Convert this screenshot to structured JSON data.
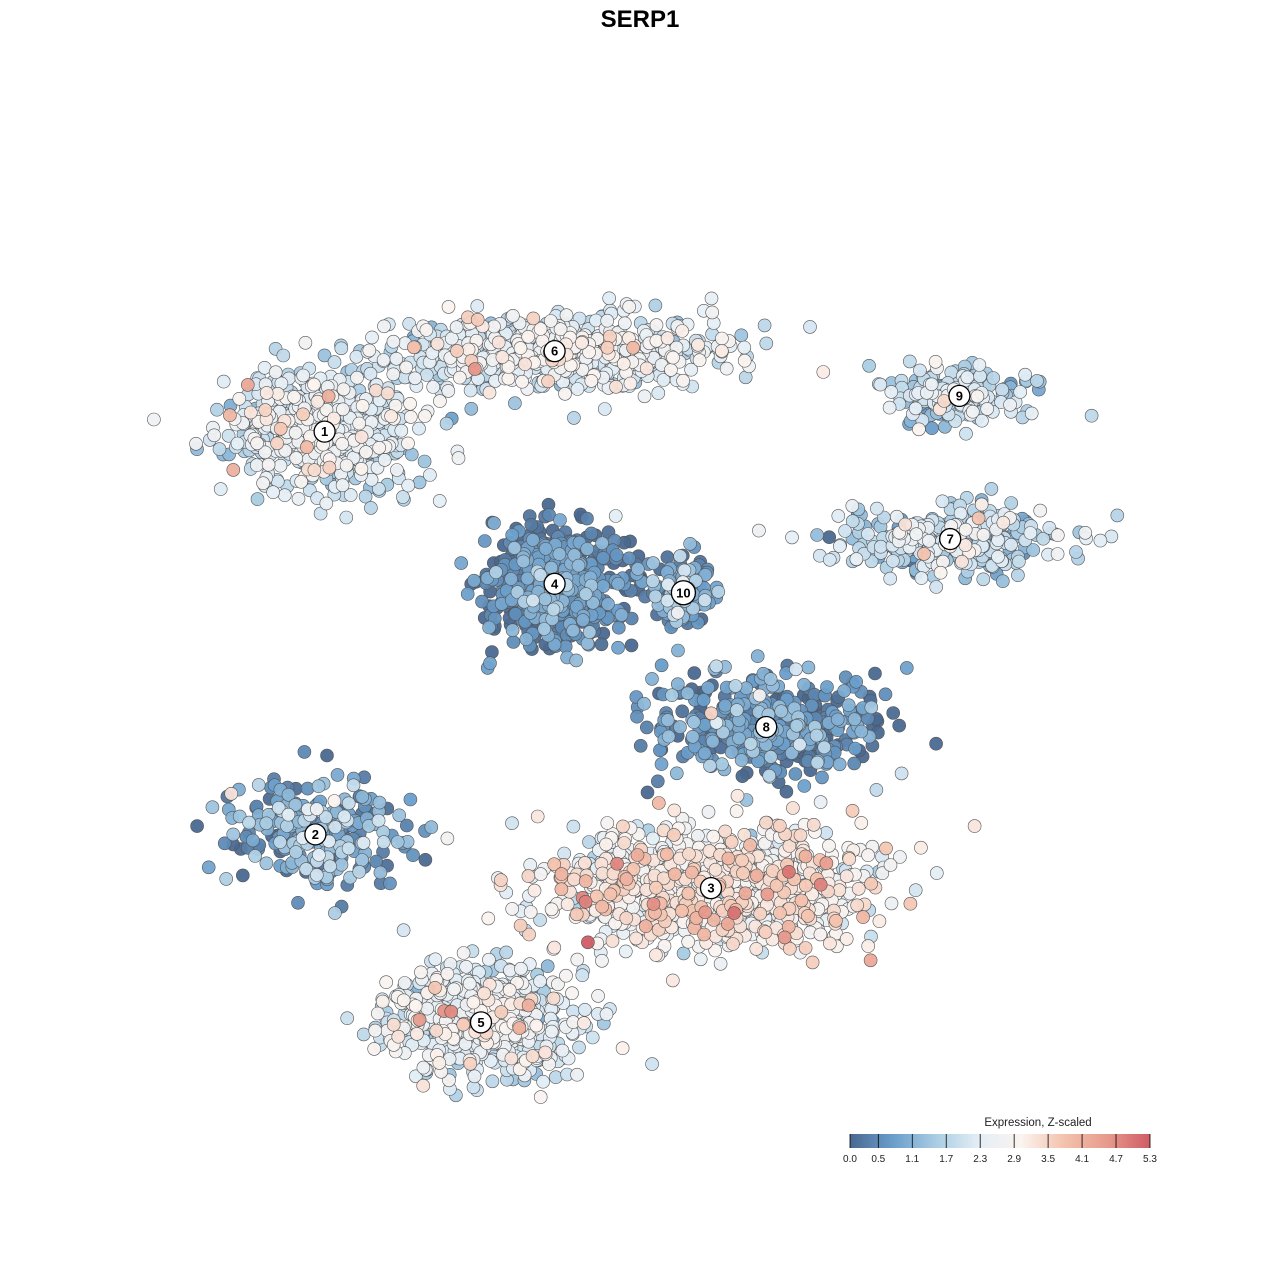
{
  "chart_data": {
    "type": "scatter",
    "title": "SERP1",
    "xlabel": "",
    "ylabel": "",
    "grid": false,
    "axes_visible": false,
    "x_range": [
      0,
      100
    ],
    "y_range": [
      0,
      100
    ],
    "color_scale": {
      "title": "Expression, Z-scaled",
      "min": 0.0,
      "max": 5.3,
      "ticks": [
        "0.0",
        "0.5",
        "1.1",
        "1.7",
        "2.3",
        "2.9",
        "3.5",
        "4.1",
        "4.7",
        "5.3"
      ],
      "tick_values": [
        0.0,
        0.5,
        1.1,
        1.7,
        2.3,
        2.9,
        3.5,
        4.1,
        4.7,
        5.3
      ],
      "palette": [
        "#4a6890",
        "#6a9ecb",
        "#a9cce3",
        "#e3eef6",
        "#fbf3ef",
        "#f3c2ad",
        "#e79a8c",
        "#cf5c64"
      ],
      "placement": "bottom-right"
    },
    "point_style": {
      "stroke": "#555555",
      "opacity": 0.95
    },
    "clusters": [
      {
        "label": "1",
        "x": 13.0,
        "y": 73.0,
        "sx": 9.0,
        "sy": 6.0,
        "n": 700,
        "mean": 2.1,
        "sd": 0.5
      },
      {
        "label": "6",
        "x": 38.0,
        "y": 82.0,
        "sx": 16.0,
        "sy": 3.5,
        "n": 750,
        "mean": 2.2,
        "sd": 0.5
      },
      {
        "label": "9",
        "x": 82.0,
        "y": 77.0,
        "sx": 7.0,
        "sy": 3.0,
        "n": 200,
        "mean": 1.7,
        "sd": 0.6
      },
      {
        "label": "7",
        "x": 81.0,
        "y": 61.0,
        "sx": 11.0,
        "sy": 3.5,
        "n": 320,
        "mean": 1.8,
        "sd": 0.6
      },
      {
        "label": "4",
        "x": 38.0,
        "y": 56.0,
        "sx": 6.5,
        "sy": 6.0,
        "n": 600,
        "mean": 0.4,
        "sd": 0.45
      },
      {
        "label": "10",
        "x": 52.0,
        "y": 55.0,
        "sx": 3.0,
        "sy": 4.0,
        "n": 120,
        "mean": 0.9,
        "sd": 0.6
      },
      {
        "label": "8",
        "x": 61.0,
        "y": 40.0,
        "sx": 12.0,
        "sy": 5.0,
        "n": 450,
        "mean": 0.5,
        "sd": 0.6
      },
      {
        "label": "2",
        "x": 12.0,
        "y": 28.0,
        "sx": 8.0,
        "sy": 5.5,
        "n": 280,
        "mean": 0.8,
        "sd": 0.7
      },
      {
        "label": "3",
        "x": 55.0,
        "y": 22.0,
        "sx": 16.0,
        "sy": 6.0,
        "n": 1000,
        "mean": 2.8,
        "sd": 0.55
      },
      {
        "label": "5",
        "x": 30.0,
        "y": 7.0,
        "sx": 9.0,
        "sy": 5.5,
        "n": 700,
        "mean": 2.2,
        "sd": 0.5
      }
    ],
    "cluster_labels": [
      "1",
      "2",
      "3",
      "4",
      "5",
      "6",
      "7",
      "8",
      "9",
      "10"
    ]
  }
}
